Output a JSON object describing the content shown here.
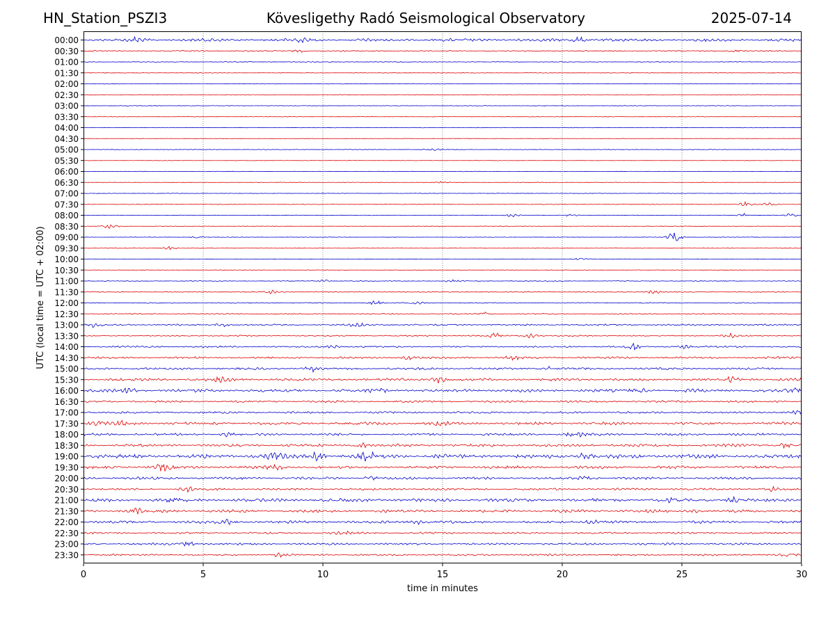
{
  "header": {
    "station": "HN_Station_PSZI3",
    "title": "Kövesligethy Radó Seismological Observatory",
    "date": "2025-07-14"
  },
  "chart_data": {
    "type": "line",
    "xlabel": "time in minutes",
    "ylabel": "UTC (local time = UTC + 02:00)",
    "xlim": [
      0,
      30
    ],
    "xticks": [
      0,
      5,
      10,
      15,
      20,
      25,
      30
    ],
    "x_gridlines": [
      5,
      10,
      15,
      20,
      25
    ],
    "grid": "vertical dotted",
    "colors": {
      "even_rows": "#0000cc",
      "odd_rows": "#dd0000"
    },
    "rows": [
      {
        "label": "00:00",
        "amplitude": 0.3,
        "events": [
          {
            "t": 2.2,
            "a": 0.5
          },
          {
            "t": 9.0,
            "a": 0.45
          },
          {
            "t": 20.7,
            "a": 0.6
          }
        ]
      },
      {
        "label": "00:30",
        "amplitude": 0.12,
        "events": [
          {
            "t": 9.0,
            "a": 0.3
          },
          {
            "t": 27.3,
            "a": 0.35
          }
        ]
      },
      {
        "label": "01:00",
        "amplitude": 0.08,
        "events": []
      },
      {
        "label": "01:30",
        "amplitude": 0.06,
        "events": []
      },
      {
        "label": "02:00",
        "amplitude": 0.06,
        "events": []
      },
      {
        "label": "02:30",
        "amplitude": 0.05,
        "events": []
      },
      {
        "label": "03:00",
        "amplitude": 0.06,
        "events": []
      },
      {
        "label": "03:30",
        "amplitude": 0.05,
        "events": []
      },
      {
        "label": "04:00",
        "amplitude": 0.05,
        "events": []
      },
      {
        "label": "04:30",
        "amplitude": 0.05,
        "events": []
      },
      {
        "label": "05:00",
        "amplitude": 0.06,
        "events": [
          {
            "t": 14.6,
            "a": 0.3
          }
        ]
      },
      {
        "label": "05:30",
        "amplitude": 0.05,
        "events": []
      },
      {
        "label": "06:00",
        "amplitude": 0.05,
        "events": []
      },
      {
        "label": "06:30",
        "amplitude": 0.05,
        "events": [
          {
            "t": 15.0,
            "a": 0.25
          }
        ]
      },
      {
        "label": "07:00",
        "amplitude": 0.05,
        "events": []
      },
      {
        "label": "07:30",
        "amplitude": 0.07,
        "events": [
          {
            "t": 27.7,
            "a": 0.5
          },
          {
            "t": 28.6,
            "a": 0.4
          }
        ]
      },
      {
        "label": "08:00",
        "amplitude": 0.06,
        "events": [
          {
            "t": 17.9,
            "a": 0.4
          },
          {
            "t": 20.4,
            "a": 0.3
          },
          {
            "t": 27.6,
            "a": 0.5
          },
          {
            "t": 29.6,
            "a": 0.4
          }
        ]
      },
      {
        "label": "08:30",
        "amplitude": 0.05,
        "events": [
          {
            "t": 1.1,
            "a": 0.8
          }
        ]
      },
      {
        "label": "09:00",
        "amplitude": 0.05,
        "events": [
          {
            "t": 4.8,
            "a": 0.3
          },
          {
            "t": 24.7,
            "a": 1.2
          }
        ]
      },
      {
        "label": "09:30",
        "amplitude": 0.05,
        "events": [
          {
            "t": 3.6,
            "a": 0.4
          }
        ]
      },
      {
        "label": "10:00",
        "amplitude": 0.05,
        "events": [
          {
            "t": 20.8,
            "a": 0.25
          }
        ]
      },
      {
        "label": "10:30",
        "amplitude": 0.05,
        "events": []
      },
      {
        "label": "11:00",
        "amplitude": 0.09,
        "events": [
          {
            "t": 10.0,
            "a": 0.3
          },
          {
            "t": 15.4,
            "a": 0.25
          }
        ]
      },
      {
        "label": "11:30",
        "amplitude": 0.09,
        "events": [
          {
            "t": 7.8,
            "a": 0.4
          },
          {
            "t": 23.8,
            "a": 0.5
          }
        ]
      },
      {
        "label": "12:00",
        "amplitude": 0.1,
        "events": [
          {
            "t": 12.2,
            "a": 0.45
          },
          {
            "t": 14.0,
            "a": 0.4
          }
        ]
      },
      {
        "label": "12:30",
        "amplitude": 0.12,
        "events": [
          {
            "t": 16.8,
            "a": 0.35
          }
        ]
      },
      {
        "label": "13:00",
        "amplitude": 0.18,
        "events": [
          {
            "t": 0.5,
            "a": 0.5
          },
          {
            "t": 5.8,
            "a": 0.4
          },
          {
            "t": 11.4,
            "a": 0.45
          }
        ]
      },
      {
        "label": "13:30",
        "amplitude": 0.14,
        "events": [
          {
            "t": 17.2,
            "a": 0.6
          },
          {
            "t": 18.7,
            "a": 0.5
          },
          {
            "t": 27.0,
            "a": 0.45
          }
        ]
      },
      {
        "label": "14:00",
        "amplitude": 0.18,
        "events": [
          {
            "t": 10.4,
            "a": 0.35
          },
          {
            "t": 23.0,
            "a": 0.7
          },
          {
            "t": 25.0,
            "a": 0.4
          }
        ]
      },
      {
        "label": "14:30",
        "amplitude": 0.22,
        "events": [
          {
            "t": 13.6,
            "a": 0.45
          },
          {
            "t": 17.9,
            "a": 0.4
          }
        ]
      },
      {
        "label": "15:00",
        "amplitude": 0.24,
        "events": [
          {
            "t": 9.6,
            "a": 0.5
          },
          {
            "t": 19.3,
            "a": 0.5
          }
        ]
      },
      {
        "label": "15:30",
        "amplitude": 0.3,
        "events": [
          {
            "t": 5.8,
            "a": 0.7
          },
          {
            "t": 14.8,
            "a": 0.7
          },
          {
            "t": 27.0,
            "a": 0.5
          }
        ]
      },
      {
        "label": "16:00",
        "amplitude": 0.32,
        "events": [
          {
            "t": 1.9,
            "a": 0.5
          },
          {
            "t": 12.3,
            "a": 0.7
          },
          {
            "t": 23.2,
            "a": 0.6
          },
          {
            "t": 29.8,
            "a": 0.6
          }
        ]
      },
      {
        "label": "16:30",
        "amplitude": 0.22,
        "events": []
      },
      {
        "label": "17:00",
        "amplitude": 0.22,
        "events": [
          {
            "t": 29.8,
            "a": 0.4
          }
        ]
      },
      {
        "label": "17:30",
        "amplitude": 0.3,
        "events": [
          {
            "t": 0.6,
            "a": 0.5
          },
          {
            "t": 1.7,
            "a": 0.45
          },
          {
            "t": 14.9,
            "a": 0.4
          }
        ]
      },
      {
        "label": "18:00",
        "amplitude": 0.26,
        "events": [
          {
            "t": 6.0,
            "a": 0.4
          },
          {
            "t": 20.5,
            "a": 0.7
          }
        ]
      },
      {
        "label": "18:30",
        "amplitude": 0.3,
        "events": [
          {
            "t": 11.6,
            "a": 0.6
          },
          {
            "t": 29.3,
            "a": 0.45
          }
        ]
      },
      {
        "label": "19:00",
        "amplitude": 0.42,
        "events": [
          {
            "t": 8.0,
            "a": 0.9
          },
          {
            "t": 9.8,
            "a": 0.9
          },
          {
            "t": 11.9,
            "a": 0.8
          },
          {
            "t": 20.9,
            "a": 0.7
          }
        ]
      },
      {
        "label": "19:30",
        "amplitude": 0.3,
        "events": [
          {
            "t": 3.3,
            "a": 0.7
          },
          {
            "t": 8.0,
            "a": 0.55
          }
        ]
      },
      {
        "label": "20:00",
        "amplitude": 0.26,
        "events": [
          {
            "t": 12.0,
            "a": 0.5
          },
          {
            "t": 21.0,
            "a": 0.4
          }
        ]
      },
      {
        "label": "20:30",
        "amplitude": 0.22,
        "events": [
          {
            "t": 4.3,
            "a": 0.5
          },
          {
            "t": 28.7,
            "a": 0.45
          }
        ]
      },
      {
        "label": "21:00",
        "amplitude": 0.34,
        "events": [
          {
            "t": 3.7,
            "a": 0.45
          },
          {
            "t": 24.6,
            "a": 0.6
          },
          {
            "t": 27.1,
            "a": 0.6
          }
        ]
      },
      {
        "label": "21:30",
        "amplitude": 0.3,
        "events": [
          {
            "t": 2.2,
            "a": 0.6
          },
          {
            "t": 25.5,
            "a": 0.4
          }
        ]
      },
      {
        "label": "22:00",
        "amplitude": 0.28,
        "events": [
          {
            "t": 6.1,
            "a": 0.55
          },
          {
            "t": 14.0,
            "a": 0.55
          },
          {
            "t": 21.2,
            "a": 0.5
          }
        ]
      },
      {
        "label": "22:30",
        "amplitude": 0.2,
        "events": [
          {
            "t": 10.8,
            "a": 0.4
          }
        ]
      },
      {
        "label": "23:00",
        "amplitude": 0.22,
        "events": [
          {
            "t": 4.4,
            "a": 0.5
          }
        ]
      },
      {
        "label": "23:30",
        "amplitude": 0.2,
        "events": [
          {
            "t": 8.2,
            "a": 0.4
          },
          {
            "t": 29.4,
            "a": 0.4
          }
        ]
      }
    ]
  }
}
